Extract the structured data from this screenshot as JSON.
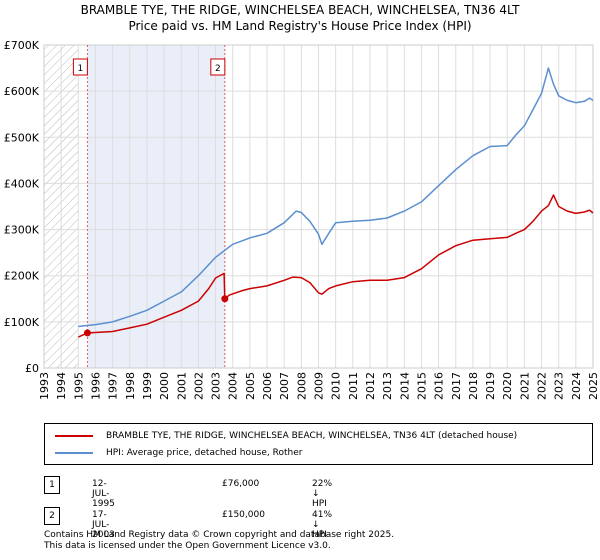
{
  "chart_data": {
    "type": "line",
    "title": "BRAMBLE TYE, THE RIDGE, WINCHELSEA BEACH, WINCHELSEA, TN36 4LT",
    "subtitle": "Price paid vs. HM Land Registry's House Price Index (HPI)",
    "xlim": [
      1993.0,
      2025.0
    ],
    "ylim": [
      0,
      700000
    ],
    "y_ticks": [
      0,
      100000,
      200000,
      300000,
      400000,
      500000,
      600000,
      700000
    ],
    "y_tick_labels": [
      "£0",
      "£100K",
      "£200K",
      "£300K",
      "£400K",
      "£500K",
      "£600K",
      "£700K"
    ],
    "x_tick_labels": [
      "1993",
      "1994",
      "1995",
      "1996",
      "1997",
      "1998",
      "1999",
      "2000",
      "2001",
      "2002",
      "2003",
      "2004",
      "2005",
      "2006",
      "2007",
      "2008",
      "2009",
      "2010",
      "2011",
      "2012",
      "2013",
      "2014",
      "2015",
      "2016",
      "2017",
      "2018",
      "2019",
      "2020",
      "2021",
      "2022",
      "2023",
      "2024",
      "2025"
    ],
    "grid": true,
    "hatched_before": 1995.0,
    "shaded_region": [
      1995.53,
      2003.54
    ],
    "series": [
      {
        "name": "BRAMBLE TYE, THE RIDGE, WINCHELSEA BEACH, WINCHELSEA, TN36 4LT (detached house)",
        "color": "#cc0000",
        "x": [
          1995.0,
          1995.53,
          1996.0,
          1997.0,
          1998.0,
          1999.0,
          2000.0,
          2001.0,
          2002.0,
          2002.6,
          2003.0,
          2003.5,
          2003.54,
          2003.8,
          2004.5,
          2005.0,
          2006.0,
          2007.0,
          2007.5,
          2008.0,
          2008.5,
          2009.0,
          2009.2,
          2009.6,
          2010.0,
          2011.0,
          2012.0,
          2013.0,
          2014.0,
          2015.0,
          2016.0,
          2017.0,
          2018.0,
          2019.0,
          2020.0,
          2020.5,
          2021.0,
          2021.5,
          2022.0,
          2022.4,
          2022.7,
          2023.0,
          2023.5,
          2024.0,
          2024.5,
          2024.8,
          2025.0
        ],
        "values": [
          67000,
          76000,
          77000,
          79000,
          87000,
          95000,
          110000,
          125000,
          145000,
          172000,
          195000,
          205000,
          150000,
          158000,
          167000,
          172000,
          178000,
          190000,
          197000,
          196000,
          185000,
          163000,
          160000,
          172000,
          178000,
          187000,
          190000,
          190000,
          196000,
          215000,
          245000,
          265000,
          277000,
          280000,
          283000,
          292000,
          300000,
          318000,
          340000,
          352000,
          375000,
          350000,
          340000,
          335000,
          338000,
          342000,
          336000
        ]
      },
      {
        "name": "HPI: Average price, detached house, Rother",
        "color": "#5b8fd0",
        "x": [
          1995.0,
          1995.5,
          1996.0,
          1997.0,
          1998.0,
          1999.0,
          2000.0,
          2001.0,
          2002.0,
          2003.0,
          2004.0,
          2005.0,
          2006.0,
          2007.0,
          2007.7,
          2008.0,
          2008.5,
          2009.0,
          2009.2,
          2009.6,
          2010.0,
          2011.0,
          2012.0,
          2013.0,
          2014.0,
          2015.0,
          2016.0,
          2017.0,
          2018.0,
          2019.0,
          2020.0,
          2020.5,
          2021.0,
          2021.5,
          2022.0,
          2022.4,
          2022.7,
          2023.0,
          2023.5,
          2024.0,
          2024.5,
          2024.8,
          2025.0
        ],
        "values": [
          90000,
          92000,
          94000,
          100000,
          112000,
          125000,
          145000,
          165000,
          200000,
          240000,
          268000,
          282000,
          292000,
          315000,
          340000,
          337000,
          318000,
          290000,
          268000,
          292000,
          315000,
          318000,
          320000,
          325000,
          340000,
          360000,
          395000,
          430000,
          460000,
          480000,
          482000,
          505000,
          525000,
          560000,
          595000,
          650000,
          615000,
          590000,
          580000,
          575000,
          578000,
          585000,
          580000
        ]
      }
    ],
    "sales": [
      {
        "label": "1",
        "x": 1995.53,
        "value": 76000,
        "date": "12-JUL-1995",
        "price": "£76,000",
        "hpi": "22% ↓ HPI"
      },
      {
        "label": "2",
        "x": 2003.54,
        "value": 150000,
        "date": "17-JUL-2003",
        "price": "£150,000",
        "hpi": "41% ↓ HPI"
      }
    ]
  },
  "legend": {
    "property_label": "BRAMBLE TYE, THE RIDGE, WINCHELSEA BEACH, WINCHELSEA, TN36 4LT (detached house)",
    "hpi_label": "HPI: Average price, detached house, Rother"
  },
  "footer": {
    "line1": "Contains HM Land Registry data © Crown copyright and database right 2025.",
    "line2": "This data is licensed under the Open Government Licence v3.0."
  }
}
